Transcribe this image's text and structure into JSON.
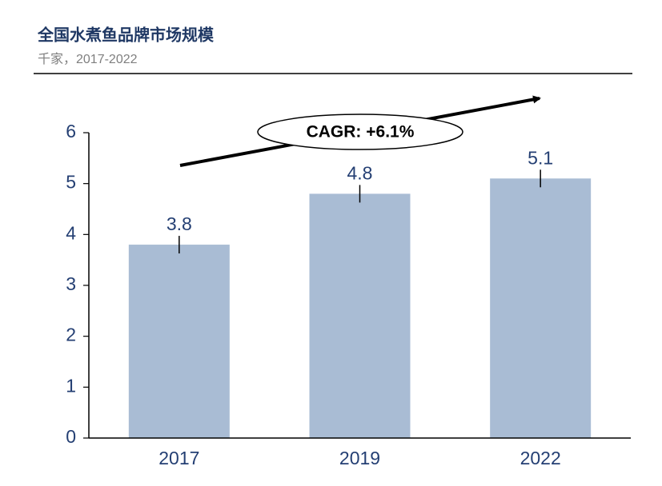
{
  "chart_data": {
    "type": "bar",
    "title": "全国水煮鱼品牌市场规模",
    "subtitle": "千家，2017-2022",
    "categories": [
      "2017",
      "2019",
      "2022"
    ],
    "values": [
      3.8,
      4.8,
      5.1
    ],
    "color": "#a9bcd4",
    "ylim": [
      0,
      6
    ],
    "yticks": [
      0,
      1,
      2,
      3,
      4,
      5,
      6
    ],
    "grid": false,
    "annotation": "CAGR: +6.1%"
  }
}
